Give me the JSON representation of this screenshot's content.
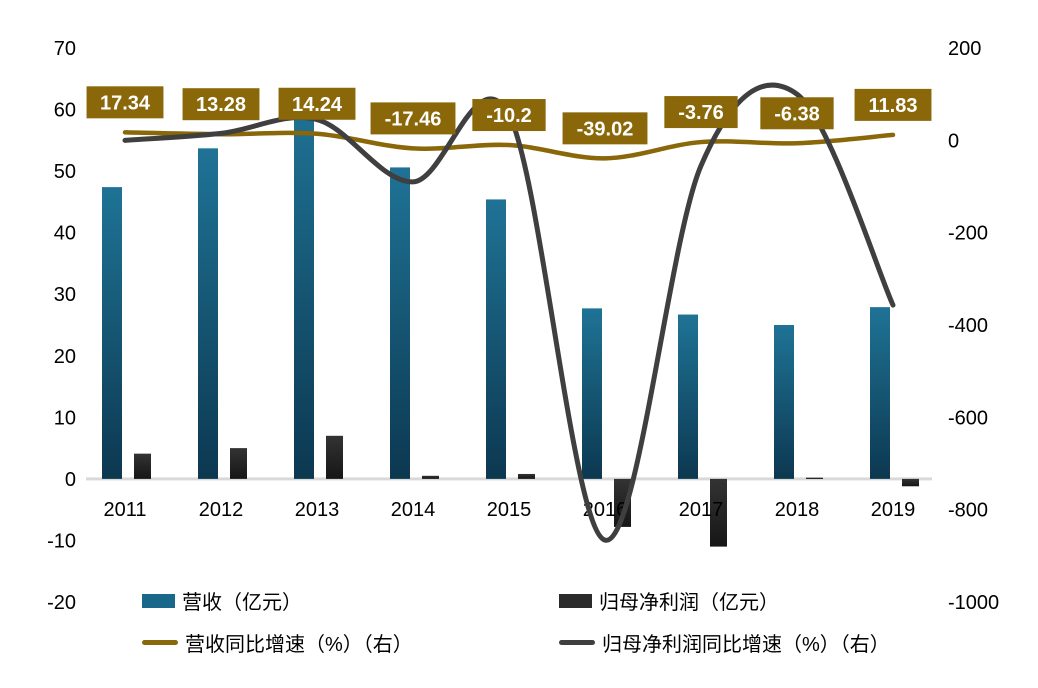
{
  "chart_data": {
    "type": "combo-bar-line-dual-axis",
    "categories": [
      "2011",
      "2012",
      "2013",
      "2014",
      "2015",
      "2016",
      "2017",
      "2018",
      "2019"
    ],
    "series": [
      {
        "name": "营收（亿元）",
        "type": "bar",
        "axis": "left",
        "values": [
          47.4,
          53.7,
          61.3,
          50.6,
          45.4,
          27.7,
          26.7,
          25.0,
          27.9
        ],
        "color": "#19688a",
        "color_top": "#1f7396",
        "color_bottom": "#0c3850"
      },
      {
        "name": "归母净利润（亿元）",
        "type": "bar",
        "axis": "left",
        "values": [
          4.1,
          5.0,
          7.0,
          0.5,
          0.8,
          -7.8,
          -11.0,
          0.2,
          -1.2
        ],
        "color": "#2b2b2b",
        "color_top": "#333333",
        "color_bottom": "#161616"
      },
      {
        "name": "营收同比增速（%）（右）",
        "type": "line",
        "axis": "right",
        "values": [
          17.34,
          13.28,
          14.24,
          -17.46,
          -10.2,
          -39.02,
          -3.76,
          -6.38,
          11.83
        ],
        "color": "#8a6708",
        "has_labels": true
      },
      {
        "name": "归母净利润同比增速（%）（右）",
        "type": "line",
        "axis": "right",
        "values": [
          0,
          15,
          45,
          -90,
          55,
          -866,
          -55,
          100,
          -357
        ],
        "color": "#3f3f3f",
        "has_labels": false
      }
    ],
    "data_labels": [
      "17.34",
      "13.28",
      "14.24",
      "-17.46",
      "-10.2",
      "-39.02",
      "-3.76",
      "-6.38",
      "11.83"
    ],
    "left_axis": {
      "min": -20,
      "max": 70,
      "tick_labels": [
        "70",
        "60",
        "50",
        "40",
        "30",
        "20",
        "10",
        "0",
        "-10",
        "-20"
      ]
    },
    "right_axis": {
      "min": -1000,
      "max": 200,
      "tick_labels": [
        "200",
        "0",
        "-200",
        "-400",
        "-600",
        "-800",
        "-1000"
      ]
    },
    "legend_position": "bottom",
    "grid": "off",
    "styles": {
      "label_box_bg": "#8a6708",
      "label_text": "#ffffff",
      "axis_line": "#d9d9d9",
      "tick_text": "#000000"
    }
  }
}
